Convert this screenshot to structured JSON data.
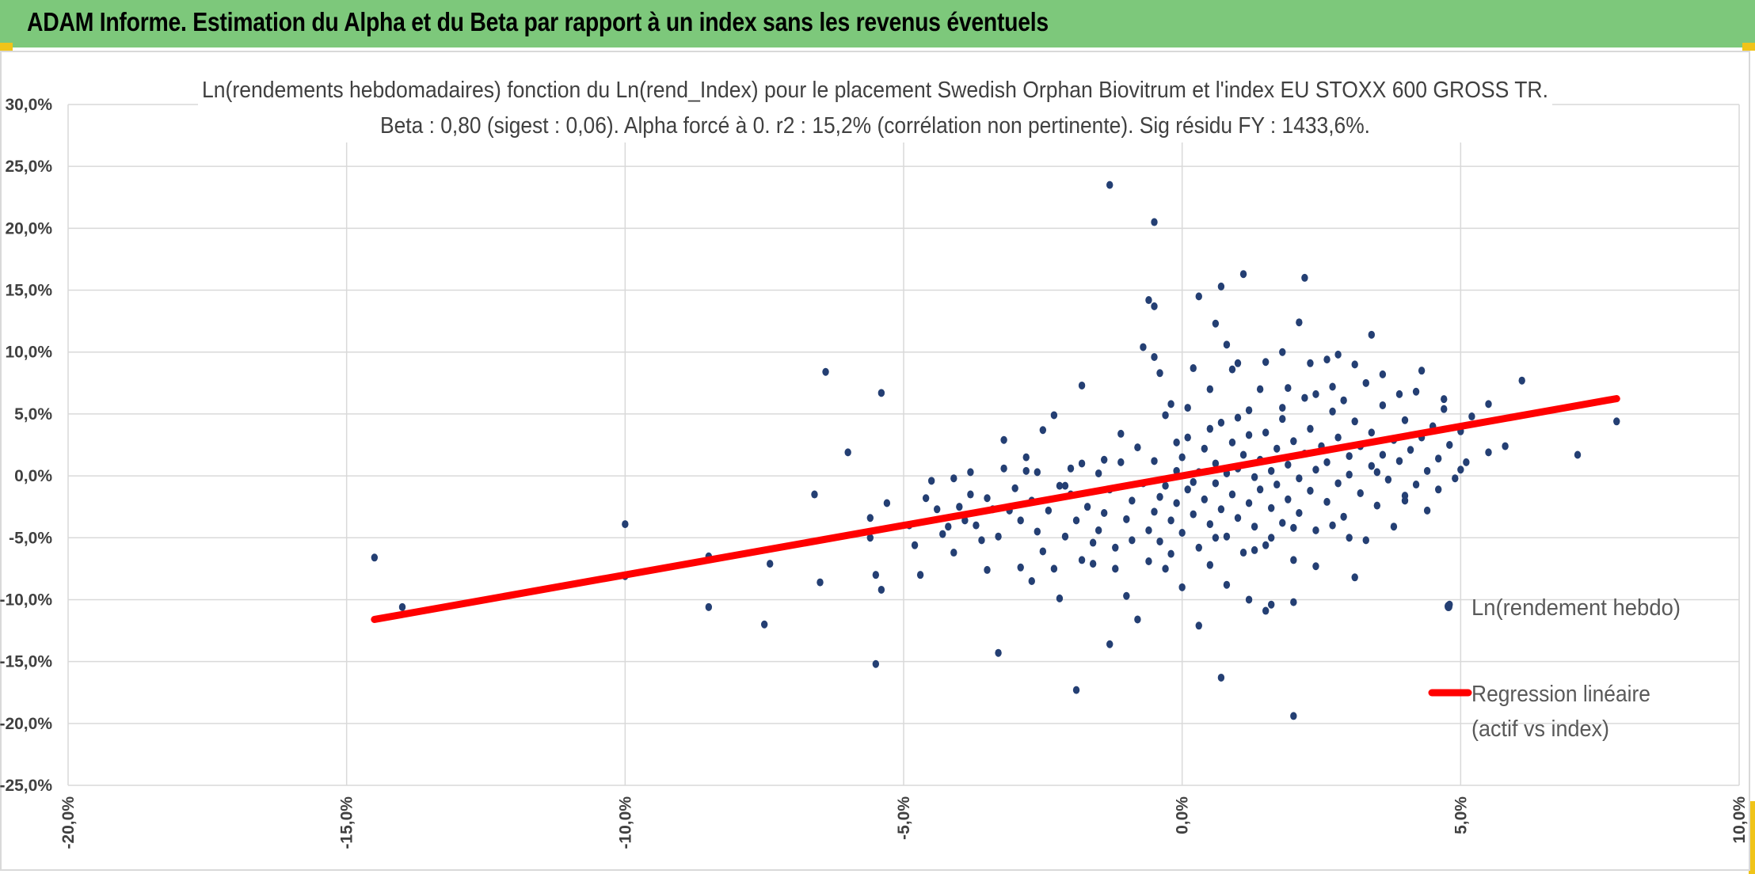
{
  "header": {
    "title": "ADAM Informe. Estimation du Alpha et du Beta par rapport à un index sans les revenus éventuels"
  },
  "colors": {
    "header_bg": "#7dc87b",
    "accent_marks": "#f0c419",
    "points": "#243f73",
    "regression": "#ff0000",
    "grid": "#d9d9d9"
  },
  "chart_data": {
    "type": "scatter",
    "title_line1": "Ln(rendements hebdomadaires) fonction du Ln(rend_Index) pour le placement Swedish Orphan Biovitrum  et l'index EU STOXX 600 GROSS TR.",
    "title_line2": "Beta : 0,80 (sigest : 0,06). Alpha forcé à 0. r2 : 15,2% (corrélation non pertinente). Sig résidu FY : 1433,6%.",
    "xlabel": "",
    "ylabel": "",
    "xlim": [
      -0.2,
      0.1
    ],
    "ylim": [
      -0.25,
      0.3
    ],
    "x_ticks": [
      -0.2,
      -0.15,
      -0.1,
      -0.05,
      0.0,
      0.05,
      0.1
    ],
    "x_tick_labels": [
      "-20,0%",
      "-15,0%",
      "-10,0%",
      "-5,0%",
      "0,0%",
      "5,0%",
      "10,0%"
    ],
    "y_ticks": [
      0.3,
      0.25,
      0.2,
      0.15,
      0.1,
      0.05,
      0.0,
      -0.05,
      -0.1,
      -0.15,
      -0.2,
      -0.25
    ],
    "y_tick_labels": [
      "30,0%",
      "25,0%",
      "20,0%",
      "15,0%",
      "10,0%",
      "5,0%",
      "0,0%",
      "-5,0%",
      "-10,0%",
      "-15,0%",
      "-20,0%",
      "-25,0%"
    ],
    "grid": "vertical and horizontal major gridlines",
    "legend_position": "right",
    "series": [
      {
        "name": "Ln(rendement hebdo)",
        "kind": "scatter",
        "points": [
          [
            -0.145,
            -0.066
          ],
          [
            -0.14,
            -0.106
          ],
          [
            -0.1,
            -0.039
          ],
          [
            -0.1,
            -0.081
          ],
          [
            -0.085,
            -0.065
          ],
          [
            -0.085,
            -0.106
          ],
          [
            -0.075,
            -0.12
          ],
          [
            -0.074,
            -0.071
          ],
          [
            -0.066,
            -0.015
          ],
          [
            -0.065,
            -0.086
          ],
          [
            -0.064,
            0.084
          ],
          [
            -0.06,
            0.019
          ],
          [
            -0.056,
            -0.034
          ],
          [
            -0.056,
            -0.05
          ],
          [
            -0.055,
            -0.152
          ],
          [
            -0.055,
            -0.08
          ],
          [
            -0.054,
            -0.092
          ],
          [
            -0.054,
            0.067
          ],
          [
            -0.053,
            -0.022
          ],
          [
            -0.049,
            -0.04
          ],
          [
            -0.048,
            -0.056
          ],
          [
            -0.047,
            -0.08
          ],
          [
            -0.046,
            -0.018
          ],
          [
            -0.045,
            -0.004
          ],
          [
            -0.044,
            -0.027
          ],
          [
            -0.043,
            -0.047
          ],
          [
            -0.042,
            -0.041
          ],
          [
            -0.041,
            -0.062
          ],
          [
            -0.04,
            -0.025
          ],
          [
            -0.039,
            -0.036
          ],
          [
            -0.038,
            -0.015
          ],
          [
            -0.037,
            -0.04
          ],
          [
            -0.036,
            -0.052
          ],
          [
            -0.035,
            -0.076
          ],
          [
            -0.035,
            -0.018
          ],
          [
            -0.034,
            -0.027
          ],
          [
            -0.033,
            -0.049
          ],
          [
            -0.033,
            -0.143
          ],
          [
            -0.032,
            0.029
          ],
          [
            -0.032,
            0.006
          ],
          [
            -0.031,
            -0.028
          ],
          [
            -0.03,
            -0.01
          ],
          [
            -0.029,
            -0.074
          ],
          [
            -0.029,
            -0.036
          ],
          [
            -0.028,
            0.015
          ],
          [
            -0.027,
            -0.02
          ],
          [
            -0.026,
            -0.045
          ],
          [
            -0.025,
            -0.061
          ],
          [
            -0.025,
            0.037
          ],
          [
            -0.024,
            -0.028
          ],
          [
            -0.023,
            -0.075
          ],
          [
            -0.023,
            0.049
          ],
          [
            -0.022,
            -0.008
          ],
          [
            -0.021,
            -0.049
          ],
          [
            -0.02,
            -0.015
          ],
          [
            -0.019,
            -0.036
          ],
          [
            -0.018,
            -0.068
          ],
          [
            -0.018,
            0.01
          ],
          [
            -0.017,
            -0.025
          ],
          [
            -0.016,
            -0.054
          ],
          [
            -0.015,
            0.002
          ],
          [
            -0.015,
            -0.044
          ],
          [
            -0.014,
            -0.03
          ],
          [
            -0.013,
            -0.011
          ],
          [
            -0.012,
            -0.058
          ],
          [
            -0.012,
            -0.075
          ],
          [
            -0.011,
            0.011
          ],
          [
            -0.01,
            -0.035
          ],
          [
            -0.009,
            -0.02
          ],
          [
            -0.009,
            -0.052
          ],
          [
            -0.008,
            0.023
          ],
          [
            -0.008,
            -0.116
          ],
          [
            -0.007,
            -0.006
          ],
          [
            -0.006,
            -0.044
          ],
          [
            -0.006,
            -0.069
          ],
          [
            -0.005,
            0.012
          ],
          [
            -0.005,
            -0.029
          ],
          [
            -0.004,
            -0.017
          ],
          [
            -0.004,
            -0.053
          ],
          [
            -0.003,
            0.049
          ],
          [
            -0.003,
            -0.008
          ],
          [
            -0.002,
            -0.036
          ],
          [
            -0.002,
            -0.063
          ],
          [
            -0.001,
            0.004
          ],
          [
            -0.001,
            -0.022
          ],
          [
            0.0,
            -0.046
          ],
          [
            0.0,
            0.015
          ],
          [
            0.0,
            -0.09
          ],
          [
            0.001,
            -0.011
          ],
          [
            0.001,
            0.031
          ],
          [
            0.002,
            -0.031
          ],
          [
            0.002,
            -0.005
          ],
          [
            0.003,
            -0.058
          ],
          [
            0.003,
            0.003
          ],
          [
            0.004,
            -0.019
          ],
          [
            0.004,
            0.022
          ],
          [
            0.005,
            -0.039
          ],
          [
            0.005,
            -0.072
          ],
          [
            0.006,
            -0.006
          ],
          [
            0.006,
            0.01
          ],
          [
            0.007,
            -0.027
          ],
          [
            0.007,
            0.043
          ],
          [
            0.008,
            -0.049
          ],
          [
            0.008,
            0.002
          ],
          [
            0.009,
            -0.015
          ],
          [
            0.009,
            0.027
          ],
          [
            0.01,
            -0.034
          ],
          [
            0.01,
            0.006
          ],
          [
            0.011,
            -0.062
          ],
          [
            0.011,
            0.017
          ],
          [
            0.012,
            -0.022
          ],
          [
            0.012,
            0.053
          ],
          [
            0.013,
            -0.001
          ],
          [
            0.013,
            -0.041
          ],
          [
            0.014,
            0.013
          ],
          [
            0.014,
            -0.011
          ],
          [
            0.015,
            0.035
          ],
          [
            0.015,
            -0.056
          ],
          [
            0.016,
            0.004
          ],
          [
            0.016,
            -0.026
          ],
          [
            0.017,
            0.022
          ],
          [
            0.017,
            -0.007
          ],
          [
            0.018,
            -0.038
          ],
          [
            0.018,
            0.046
          ],
          [
            0.019,
            0.009
          ],
          [
            0.019,
            -0.019
          ],
          [
            0.02,
            -0.068
          ],
          [
            0.02,
            0.028
          ],
          [
            0.021,
            -0.002
          ],
          [
            0.021,
            -0.03
          ],
          [
            0.022,
            0.018
          ],
          [
            0.022,
            0.063
          ],
          [
            0.023,
            -0.012
          ],
          [
            0.023,
            0.038
          ],
          [
            0.024,
            0.005
          ],
          [
            0.024,
            -0.044
          ],
          [
            0.025,
            0.024
          ],
          [
            0.026,
            -0.021
          ],
          [
            0.026,
            0.011
          ],
          [
            0.027,
            0.052
          ],
          [
            0.028,
            -0.006
          ],
          [
            0.028,
            0.031
          ],
          [
            0.029,
            -0.033
          ],
          [
            0.03,
            0.016
          ],
          [
            0.03,
            0.001
          ],
          [
            0.031,
            0.044
          ],
          [
            0.032,
            -0.014
          ],
          [
            0.032,
            0.024
          ],
          [
            0.033,
            -0.052
          ],
          [
            0.034,
            0.008
          ],
          [
            0.034,
            0.035
          ],
          [
            0.035,
            -0.024
          ],
          [
            0.036,
            0.017
          ],
          [
            0.036,
            0.057
          ],
          [
            0.037,
            -0.003
          ],
          [
            0.038,
            0.029
          ],
          [
            0.038,
            -0.041
          ],
          [
            0.039,
            0.012
          ],
          [
            0.04,
            0.045
          ],
          [
            0.04,
            -0.016
          ],
          [
            0.041,
            0.021
          ],
          [
            0.042,
            -0.007
          ],
          [
            0.042,
            0.068
          ],
          [
            0.043,
            0.031
          ],
          [
            0.044,
            0.004
          ],
          [
            0.044,
            -0.028
          ],
          [
            0.045,
            0.04
          ],
          [
            0.046,
            0.014
          ],
          [
            0.046,
            -0.011
          ],
          [
            0.047,
            0.062
          ],
          [
            0.048,
            0.025
          ],
          [
            0.049,
            -0.002
          ],
          [
            0.05,
            0.036
          ],
          [
            0.051,
            0.011
          ],
          [
            0.052,
            0.048
          ],
          [
            -0.013,
            0.235
          ],
          [
            -0.005,
            0.205
          ],
          [
            -0.006,
            0.142
          ],
          [
            -0.005,
            0.137
          ],
          [
            0.003,
            0.145
          ],
          [
            0.006,
            0.123
          ],
          [
            0.007,
            0.153
          ],
          [
            0.011,
            0.163
          ],
          [
            0.021,
            0.124
          ],
          [
            0.022,
            0.16
          ],
          [
            -0.007,
            0.104
          ],
          [
            -0.005,
            0.096
          ],
          [
            -0.004,
            0.083
          ],
          [
            0.002,
            0.087
          ],
          [
            0.008,
            0.106
          ],
          [
            0.009,
            0.086
          ],
          [
            0.01,
            0.091
          ],
          [
            0.015,
            0.092
          ],
          [
            0.018,
            0.1
          ],
          [
            0.023,
            0.091
          ],
          [
            0.026,
            0.094
          ],
          [
            0.028,
            0.098
          ],
          [
            0.031,
            0.09
          ],
          [
            0.033,
            0.075
          ],
          [
            0.034,
            0.114
          ],
          [
            0.036,
            0.082
          ],
          [
            0.039,
            0.066
          ],
          [
            0.043,
            0.085
          ],
          [
            0.047,
            0.054
          ],
          [
            0.055,
            0.058
          ],
          [
            0.061,
            0.077
          ],
          [
            0.058,
            0.024
          ],
          [
            0.055,
            0.019
          ],
          [
            0.05,
            0.005
          ],
          [
            0.071,
            0.017
          ],
          [
            0.078,
            0.044
          ],
          [
            -0.013,
            -0.136
          ],
          [
            -0.019,
            -0.173
          ],
          [
            0.003,
            -0.121
          ],
          [
            0.007,
            -0.163
          ],
          [
            0.012,
            -0.1
          ],
          [
            0.015,
            -0.109
          ],
          [
            0.016,
            -0.104
          ],
          [
            0.02,
            -0.102
          ],
          [
            0.02,
            -0.194
          ],
          [
            0.013,
            -0.06
          ],
          [
            0.024,
            -0.073
          ],
          [
            0.03,
            -0.05
          ],
          [
            0.031,
            -0.082
          ],
          [
            0.048,
            -0.104
          ],
          [
            0.045,
            0.04
          ],
          [
            0.04,
            -0.02
          ],
          [
            0.035,
            0.003
          ],
          [
            -0.021,
            -0.008
          ],
          [
            -0.026,
            0.003
          ],
          [
            -0.018,
            0.073
          ],
          [
            -0.011,
            0.034
          ],
          [
            -0.002,
            0.058
          ],
          [
            0.001,
            0.055
          ],
          [
            0.005,
            0.07
          ],
          [
            0.014,
            0.07
          ],
          [
            0.019,
            0.071
          ],
          [
            0.024,
            0.066
          ],
          [
            0.027,
            0.072
          ],
          [
            0.029,
            0.061
          ],
          [
            -0.027,
            -0.085
          ],
          [
            -0.022,
            -0.099
          ],
          [
            -0.01,
            -0.097
          ],
          [
            -0.016,
            -0.071
          ],
          [
            0.008,
            -0.088
          ],
          [
            -0.041,
            -0.002
          ],
          [
            -0.038,
            0.003
          ],
          [
            -0.028,
            0.004
          ],
          [
            -0.02,
            0.006
          ],
          [
            -0.014,
            0.013
          ],
          [
            0.018,
            0.055
          ],
          [
            0.01,
            0.047
          ],
          [
            0.005,
            0.038
          ],
          [
            -0.001,
            0.027
          ],
          [
            0.012,
            0.033
          ],
          [
            0.016,
            -0.05
          ],
          [
            0.02,
            -0.042
          ],
          [
            0.006,
            -0.05
          ],
          [
            -0.003,
            -0.075
          ],
          [
            0.027,
            -0.04
          ]
        ]
      },
      {
        "name": "Regression linéaire (actif vs index)",
        "kind": "line",
        "beta": 0.8,
        "alpha": 0.0,
        "x_range": [
          -0.145,
          0.078
        ]
      }
    ],
    "legend": {
      "scatter_label": "Ln(rendement hebdo)",
      "line_label_line1": "Regression linéaire",
      "line_label_line2": "(actif vs index)"
    }
  }
}
